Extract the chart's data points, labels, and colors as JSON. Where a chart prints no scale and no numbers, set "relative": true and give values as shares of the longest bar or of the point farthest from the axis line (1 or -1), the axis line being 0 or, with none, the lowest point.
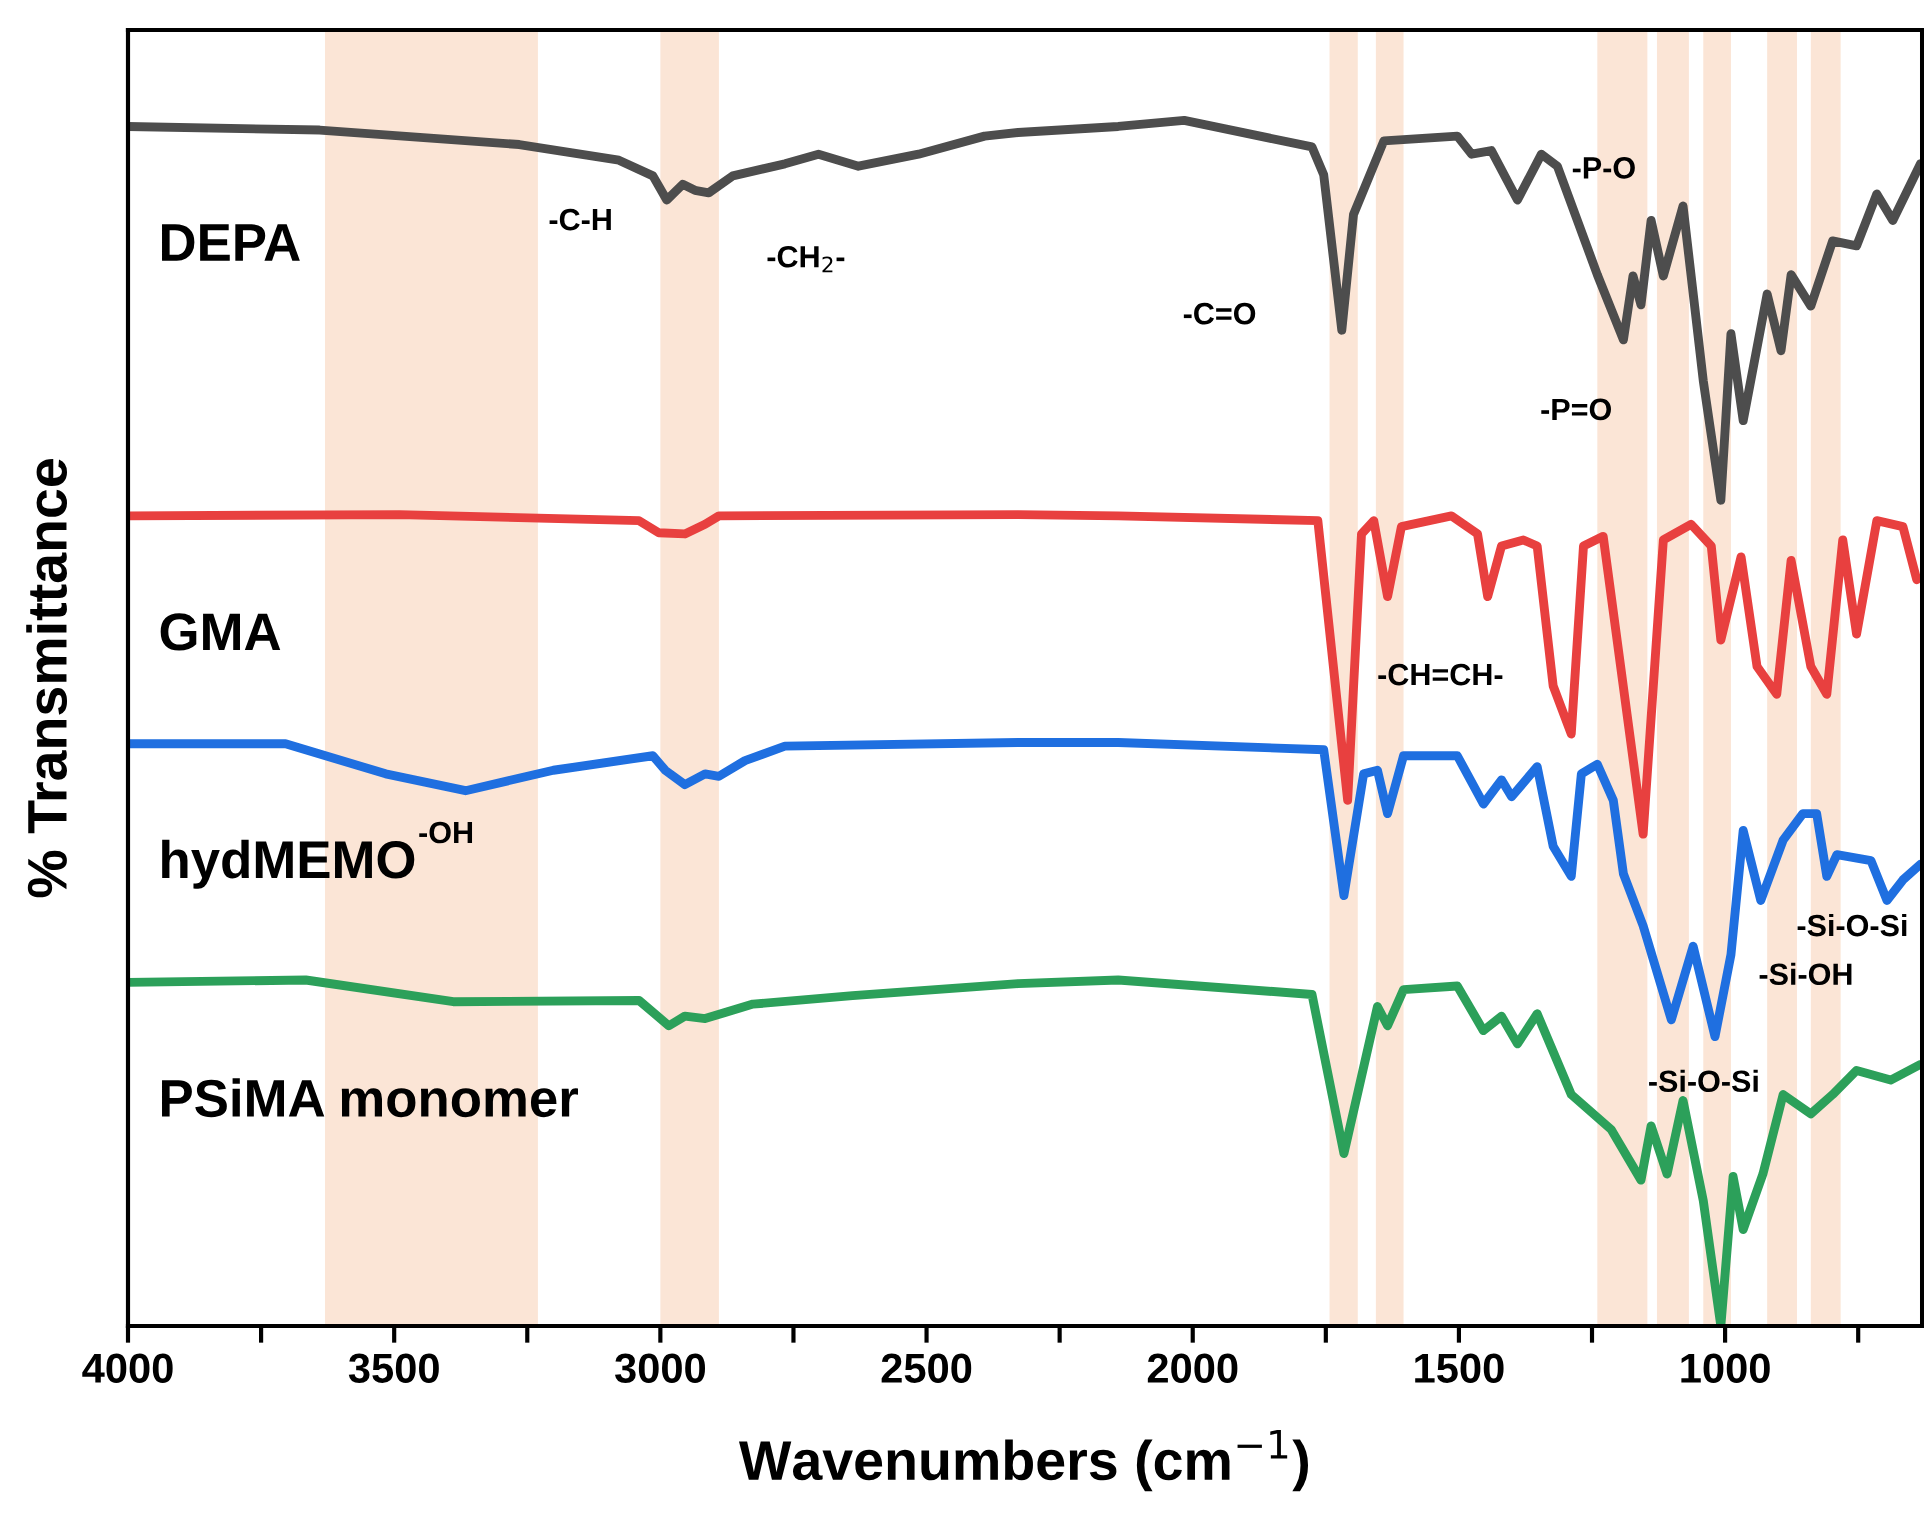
{
  "chart_data": {
    "type": "line",
    "relative": true,
    "xlabel": "Wavenumbers (cm$^{−1}$)",
    "ylabel": "% Transmittance",
    "tick_labels": "x",
    "grid": false,
    "legend": false,
    "marker": "none",
    "line_style": "solid",
    "xlim": [
      4000,
      630
    ],
    "xticks": [
      4000,
      {
        "value": 3750,
        "label": null
      },
      3500,
      {
        "value": 3250,
        "label": null
      },
      3000,
      {
        "value": 2750,
        "label": null
      },
      2500,
      {
        "value": 2250,
        "label": null
      },
      2000,
      {
        "value": 1750,
        "label": null
      },
      1500,
      {
        "value": 1250,
        "label": null
      },
      1000,
      {
        "value": 750,
        "label": null
      }
    ],
    "bands": [
      {
        "axis": "x",
        "from": 3630,
        "to": 3230,
        "color": "#fbe5d6"
      },
      {
        "axis": "x",
        "from": 3000,
        "to": 2890,
        "color": "#fbe5d6"
      },
      {
        "axis": "x",
        "from": 1743,
        "to": 1690,
        "color": "#fbe5d6"
      },
      {
        "axis": "x",
        "from": 1656,
        "to": 1604,
        "color": "#fbe5d6"
      },
      {
        "axis": "x",
        "from": 1240,
        "to": 1146,
        "color": "#fbe5d6"
      },
      {
        "axis": "x",
        "from": 1128,
        "to": 1068,
        "color": "#fbe5d6"
      },
      {
        "axis": "x",
        "from": 1041,
        "to": 989,
        "color": "#fbe5d6"
      },
      {
        "axis": "x",
        "from": 921,
        "to": 865,
        "color": "#fbe5d6"
      },
      {
        "axis": "x",
        "from": 839,
        "to": 783,
        "color": "#fbe5d6"
      }
    ],
    "series": [
      {
        "name": "DEPA",
        "color": "#4d4d4d",
        "x": [
          4000,
          3640,
          3265,
          3078,
          3014,
          2988,
          2958,
          2935,
          2909,
          2864,
          2766,
          2703,
          2628,
          2515,
          2391,
          2328,
          2140,
          2016,
          1776,
          1754,
          1720,
          1698,
          1641,
          1503,
          1476,
          1439,
          1390,
          1345,
          1315,
          1240,
          1191,
          1173,
          1158,
          1139,
          1116,
          1079,
          1041,
          1008,
          989,
          966,
          921,
          895,
          876,
          839,
          798,
          753,
          715,
          685,
          633
        ],
        "values": [
          0.995,
          0.992,
          0.98,
          0.967,
          0.954,
          0.934,
          0.947,
          0.942,
          0.94,
          0.954,
          0.964,
          0.972,
          0.962,
          0.972,
          0.987,
          0.99,
          0.995,
          1.0,
          0.978,
          0.955,
          0.826,
          0.922,
          0.983,
          0.987,
          0.972,
          0.975,
          0.934,
          0.972,
          0.962,
          0.872,
          0.818,
          0.871,
          0.847,
          0.917,
          0.871,
          0.929,
          0.784,
          0.685,
          0.823,
          0.751,
          0.856,
          0.809,
          0.872,
          0.846,
          0.9,
          0.896,
          0.939,
          0.917,
          0.964
        ]
      },
      {
        "name": "GMA",
        "color": "#e8403f",
        "x": [
          4000,
          3490,
          3040,
          3003,
          2954,
          2916,
          2890,
          2328,
          2140,
          1765,
          1709,
          1683,
          1660,
          1634,
          1608,
          1514,
          1465,
          1446,
          1420,
          1379,
          1353,
          1323,
          1289,
          1266,
          1229,
          1154,
          1116,
          1064,
          1026,
          1008,
          970,
          940,
          903,
          876,
          839,
          809,
          779,
          753,
          715,
          666,
          640
        ],
        "values": [
          0.672,
          0.673,
          0.668,
          0.658,
          0.657,
          0.665,
          0.672,
          0.673,
          0.672,
          0.668,
          0.436,
          0.657,
          0.668,
          0.605,
          0.663,
          0.672,
          0.657,
          0.605,
          0.647,
          0.652,
          0.647,
          0.531,
          0.491,
          0.647,
          0.655,
          0.408,
          0.652,
          0.665,
          0.647,
          0.569,
          0.638,
          0.547,
          0.524,
          0.635,
          0.547,
          0.524,
          0.652,
          0.574,
          0.668,
          0.663,
          0.619
        ]
      },
      {
        "name": "hydMEMO",
        "color": "#1f6fe0",
        "x": [
          4000,
          3704,
          3516,
          3366,
          3201,
          3014,
          2991,
          2954,
          2916,
          2890,
          2841,
          2766,
          2328,
          2140,
          1754,
          1716,
          1679,
          1653,
          1634,
          1604,
          1503,
          1454,
          1420,
          1401,
          1353,
          1323,
          1289,
          1270,
          1240,
          1210,
          1191,
          1154,
          1101,
          1060,
          1019,
          989,
          966,
          933,
          891,
          854,
          828,
          809,
          790,
          726,
          696,
          666,
          633
        ],
        "values": [
          0.483,
          0.483,
          0.458,
          0.444,
          0.461,
          0.473,
          0.461,
          0.449,
          0.458,
          0.456,
          0.469,
          0.481,
          0.484,
          0.484,
          0.478,
          0.357,
          0.458,
          0.461,
          0.425,
          0.473,
          0.473,
          0.433,
          0.453,
          0.439,
          0.464,
          0.398,
          0.373,
          0.458,
          0.466,
          0.436,
          0.375,
          0.332,
          0.254,
          0.315,
          0.24,
          0.308,
          0.411,
          0.353,
          0.403,
          0.425,
          0.425,
          0.373,
          0.391,
          0.386,
          0.353,
          0.37,
          0.383
        ]
      },
      {
        "name": "PSiMA monomer",
        "color": "#2ca05a",
        "x": [
          4000,
          3666,
          3389,
          3040,
          2984,
          2954,
          2916,
          2826,
          2639,
          2328,
          2140,
          1776,
          1716,
          1653,
          1634,
          1604,
          1503,
          1454,
          1420,
          1390,
          1353,
          1289,
          1214,
          1158,
          1139,
          1109,
          1079,
          1041,
          1008,
          985,
          966,
          929,
          891,
          839,
          798,
          753,
          689,
          633
        ],
        "values": [
          0.285,
          0.287,
          0.269,
          0.27,
          0.249,
          0.257,
          0.255,
          0.267,
          0.274,
          0.284,
          0.287,
          0.275,
          0.143,
          0.265,
          0.249,
          0.279,
          0.282,
          0.245,
          0.257,
          0.234,
          0.259,
          0.192,
          0.163,
          0.121,
          0.166,
          0.126,
          0.187,
          0.104,
          0.0,
          0.124,
          0.08,
          0.126,
          0.192,
          0.176,
          0.192,
          0.212,
          0.204,
          0.217
        ]
      }
    ],
    "annotations": [
      {
        "text": "-C-H",
        "x": 2988,
        "y": 0.934
      },
      {
        "text": "-CH$_{2}$-",
        "x": 2909,
        "y": 0.94
      },
      {
        "text": "-C=O",
        "x": 1720,
        "y": 0.826
      },
      {
        "text": "-P-O",
        "x": 1139,
        "y": 0.917
      },
      {
        "text": "-P=O",
        "x": 1191,
        "y": 0.818
      },
      {
        "text": "-CH=CH-",
        "x": 1634,
        "y": 0.605
      },
      {
        "text": "-OH",
        "x": 3366,
        "y": 0.444
      },
      {
        "text": "-Si-O-Si",
        "x": 933,
        "y": 0.353
      },
      {
        "text": "-Si-OH",
        "x": 989,
        "y": 0.308
      },
      {
        "text": "-Si-O-Si",
        "x": 1019,
        "y": 0.24
      }
    ]
  }
}
